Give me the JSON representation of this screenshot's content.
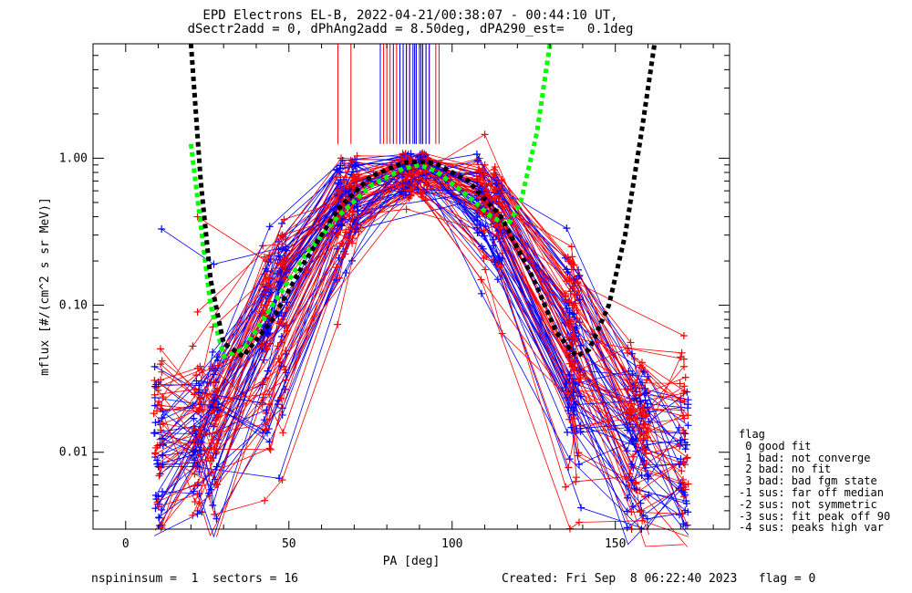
{
  "header": {
    "line1": "EPD Electrons EL-B, 2022-04-21/00:38:07 - 00:44:10 UT,",
    "line2": "dSectr2add = 0, dPhAng2add = 8.50deg, dPA290_est=   0.1deg"
  },
  "footer": {
    "left": "nspininsum =  1  sectors = 16",
    "right": "Created: Fri Sep  8 06:22:40 2023   flag = 0"
  },
  "legend": {
    "title": "flag",
    "items": [
      " 0 good fit",
      " 1 bad: not converge",
      " 2 bad: no fit",
      " 3 bad: bad fgm state",
      "-1 sus: far off median",
      "-2 sus: not symmetric",
      "-3 sus: fit peak off 90",
      "-4 sus: peaks high var"
    ]
  },
  "chart_data": {
    "type": "line",
    "xlabel": "PA [deg]",
    "ylabel": "mflux [#/(cm^2 s sr MeV)]",
    "xlim": [
      -10,
      185
    ],
    "ylim": [
      0.003,
      6.0
    ],
    "ylog": true,
    "xticks": [
      0,
      50,
      100,
      150
    ],
    "xtick_labels": [
      "0",
      "50",
      "100",
      "150"
    ],
    "yticks": [
      0.01,
      0.1,
      1.0
    ],
    "ytick_labels": [
      "0.01",
      "0.10",
      "1.00"
    ],
    "pa_bins": [
      10,
      22,
      27,
      43,
      48,
      66,
      70,
      86,
      91,
      109,
      114,
      136,
      138,
      155,
      159,
      171
    ],
    "series_colors": {
      "red": "#ff0000",
      "blue": "#0000ff",
      "black_fit": "#000000",
      "green_fit": "#00ff00"
    },
    "sample_profiles_red": [
      {
        "x": [
          22,
          27,
          43,
          48,
          66,
          70,
          86,
          91,
          109,
          114,
          136,
          155,
          171
        ],
        "y": [
          0.012,
          0.02,
          0.1,
          0.18,
          0.55,
          0.7,
          0.92,
          0.9,
          0.55,
          0.3,
          0.04,
          0.008,
          0.006
        ]
      },
      {
        "x": [
          22,
          43,
          66,
          88,
          110,
          136,
          171
        ],
        "y": [
          0.4,
          0.2,
          1.0,
          0.95,
          0.9,
          0.15,
          0.062
        ]
      },
      {
        "x": [
          22,
          27,
          48,
          66,
          86,
          109,
          136,
          155,
          171
        ],
        "y": [
          0.004,
          0.015,
          0.08,
          0.5,
          0.85,
          0.6,
          0.03,
          0.012,
          0.005
        ]
      },
      {
        "x": [
          27,
          43,
          70,
          91,
          110,
          137,
          171
        ],
        "y": [
          0.03,
          0.15,
          0.75,
          0.8,
          1.45,
          0.06,
          0.043
        ]
      },
      {
        "x": [
          22,
          48,
          66,
          86,
          114,
          155
        ],
        "y": [
          0.09,
          0.3,
          0.4,
          0.45,
          0.3,
          0.003
        ]
      }
    ],
    "sample_profiles_blue": [
      {
        "x": [
          10,
          27,
          48,
          70,
          88,
          109,
          136,
          159
        ],
        "y": [
          0.03,
          0.015,
          0.2,
          0.65,
          0.9,
          0.25,
          0.03,
          0.02
        ]
      },
      {
        "x": [
          10,
          22,
          43,
          66,
          86,
          114,
          137,
          158
        ],
        "y": [
          0.008,
          0.008,
          0.05,
          0.4,
          0.85,
          0.15,
          0.02,
          0.004
        ]
      },
      {
        "x": [
          11,
          27,
          49,
          70,
          92,
          110,
          136,
          159
        ],
        "y": [
          0.33,
          0.19,
          0.25,
          0.6,
          1.05,
          0.5,
          0.08,
          0.035
        ]
      },
      {
        "x": [
          10,
          22,
          48,
          71,
          91,
          109,
          136,
          158
        ],
        "y": [
          0.005,
          0.006,
          0.02,
          0.35,
          0.8,
          0.12,
          0.009,
          0.003
        ]
      }
    ],
    "fit_black": {
      "x": [
        20,
        23,
        26,
        30,
        36,
        45,
        55,
        65,
        75,
        85,
        90,
        95,
        105,
        115,
        125,
        132,
        138,
        142,
        148,
        153,
        158,
        162
      ],
      "y": [
        6.0,
        0.7,
        0.15,
        0.055,
        0.045,
        0.08,
        0.2,
        0.45,
        0.75,
        0.93,
        0.95,
        0.92,
        0.7,
        0.4,
        0.15,
        0.065,
        0.045,
        0.05,
        0.1,
        0.3,
        1.5,
        6.0
      ]
    },
    "fit_green": {
      "x": [
        20,
        23,
        26,
        30,
        36,
        45,
        55,
        65,
        75,
        85,
        90,
        95,
        105,
        112,
        117,
        121,
        126,
        130
      ],
      "y": [
        1.25,
        0.35,
        0.1,
        0.045,
        0.05,
        0.1,
        0.22,
        0.4,
        0.65,
        0.85,
        0.9,
        0.82,
        0.55,
        0.4,
        0.35,
        0.5,
        1.5,
        6.0
      ]
    },
    "peak_markers_red_x": [
      65,
      69,
      79,
      80,
      81,
      83,
      84,
      85,
      86,
      87,
      89,
      91,
      92,
      93,
      95,
      96
    ],
    "peak_markers_blue_x": [
      78,
      82,
      84,
      85,
      86,
      87,
      88,
      88.5,
      89,
      90,
      90.5,
      91,
      92,
      93
    ]
  }
}
